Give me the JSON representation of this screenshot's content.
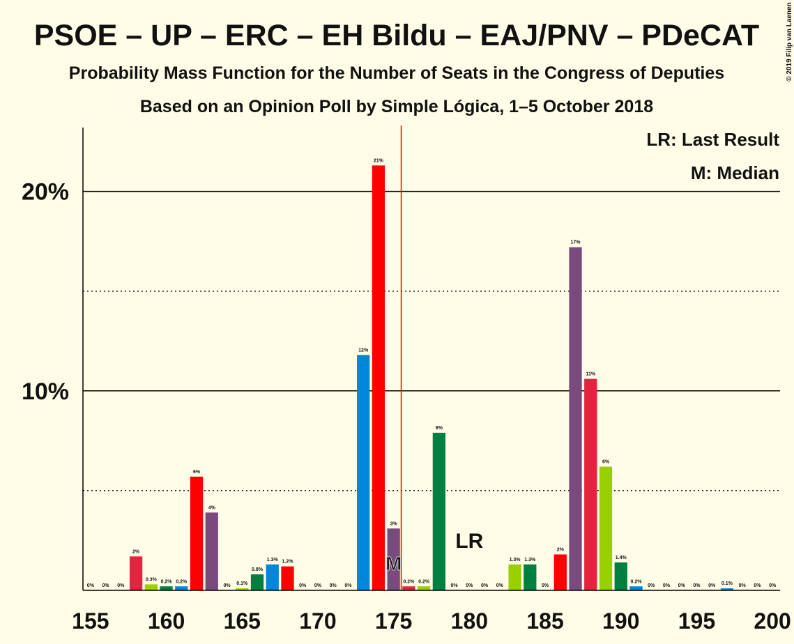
{
  "chart_data": {
    "type": "bar",
    "title": "PSOE – UP – ERC – EH Bildu – EAJ/PNV – PDeCAT",
    "subtitle": "Probability Mass Function for the Number of Seats in the Congress of Deputies",
    "subtitle2": "Based on an Opinion Poll by Simple Lógica, 1–5 October 2018",
    "legend_lines": [
      "LR: Last Result",
      "M: Median"
    ],
    "copyright": "© 2019 Filip van Laenen",
    "x": [
      155,
      156,
      157,
      158,
      159,
      160,
      161,
      162,
      163,
      164,
      165,
      166,
      167,
      168,
      169,
      170,
      171,
      172,
      173,
      174,
      175,
      176,
      177,
      178,
      179,
      180,
      181,
      182,
      183,
      184,
      185,
      186,
      187,
      188,
      189,
      190,
      191,
      192,
      193,
      194,
      195,
      196,
      197,
      198,
      199,
      200
    ],
    "values": [
      0,
      0,
      0,
      1.7,
      0.3,
      0.2,
      0.2,
      5.7,
      3.9,
      0,
      0.1,
      0.8,
      1.3,
      1.2,
      0,
      0,
      0,
      0,
      11.8,
      21.3,
      3.1,
      0.2,
      0.2,
      7.9,
      0,
      0,
      0,
      0,
      1.3,
      1.3,
      0,
      1.8,
      17.2,
      10.6,
      6.2,
      1.4,
      0.2,
      0,
      0,
      0,
      0,
      0,
      0.1,
      0,
      0,
      0
    ],
    "value_labels": [
      "0%",
      "0%",
      "0%",
      "2%",
      "0.3%",
      "0.2%",
      "0.2%",
      "6%",
      "4%",
      "0%",
      "0.1%",
      "0.8%",
      "1.3%",
      "1.2%",
      "0%",
      "0%",
      "0%",
      "0%",
      "12%",
      "21%",
      "3%",
      "0.2%",
      "0.2%",
      "8%",
      "0%",
      "0%",
      "0%",
      "0%",
      "1.3%",
      "1.3%",
      "0%",
      "2%",
      "17%",
      "11%",
      "6%",
      "1.4%",
      "0.2%",
      "0%",
      "0%",
      "0%",
      "0%",
      "0%",
      "0.1%",
      "0%",
      "0%",
      "0%"
    ],
    "colors": [
      "#7A4A7E",
      "#E3243F",
      "#9BD000",
      "#E3243F",
      "#9BD000",
      "#008040",
      "#0087DC",
      "#FF0000",
      "#7A4A7E",
      "#E3243F",
      "#9BD000",
      "#008040",
      "#0087DC",
      "#FF0000",
      "#7A4A7E",
      "#E3243F",
      "#9BD000",
      "#008040",
      "#0087DC",
      "#FF0000",
      "#7A4A7E",
      "#E3243F",
      "#9BD000",
      "#008040",
      "#0087DC",
      "#FF0000",
      "#7A4A7E",
      "#E3243F",
      "#9BD000",
      "#008040",
      "#0087DC",
      "#FF0000",
      "#7A4A7E",
      "#E3243F",
      "#9BD000",
      "#008040",
      "#0087DC",
      "#FF0000",
      "#7A4A7E",
      "#E3243F",
      "#9BD000",
      "#008040",
      "#0087DC",
      "#FF0000",
      "#7A4A7E",
      "#E3243F"
    ],
    "xlim": [
      154.5,
      200.5
    ],
    "xticks": [
      155,
      160,
      165,
      170,
      175,
      180,
      185,
      190,
      195,
      200
    ],
    "ylim": [
      0,
      23.2
    ],
    "yticks": [
      {
        "value": 10,
        "label": "10%"
      },
      {
        "value": 20,
        "label": "20%"
      }
    ],
    "minor_yticks": [
      5,
      15
    ],
    "grid": true,
    "median": 175,
    "median_label": "M",
    "last_result": 180,
    "last_result_label": "LR",
    "majority": 176,
    "majority_color": "#FF0000"
  }
}
